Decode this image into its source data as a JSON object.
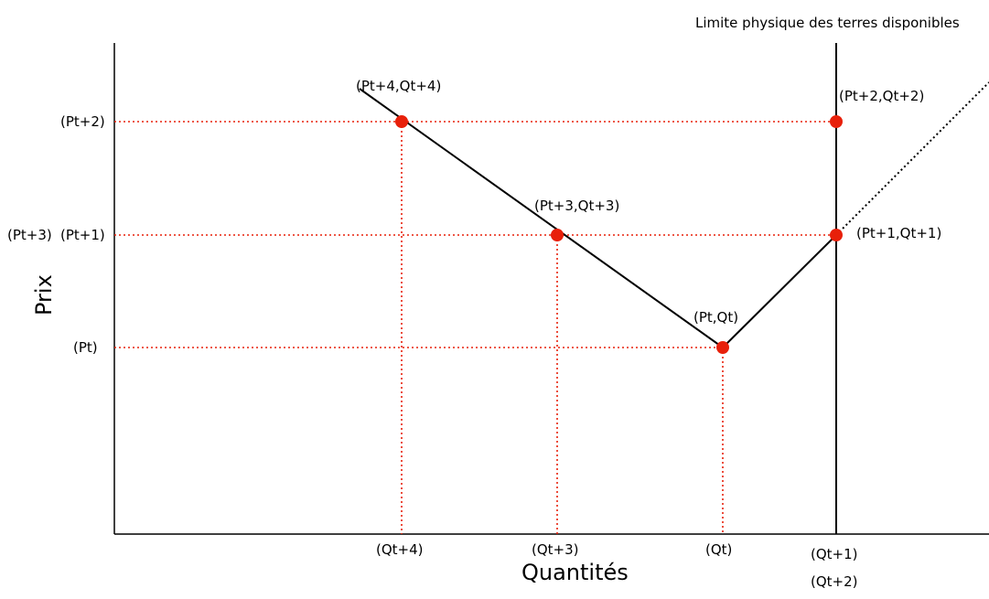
{
  "title": "Limite physique des terres disponibles",
  "axes": {
    "x_title": "Quantités",
    "y_title": "Prix"
  },
  "y_ticks": {
    "pt2": "(Pt+2)",
    "pt1": "(Pt+1)",
    "pt3": "(Pt+3)",
    "pt": "(Pt)"
  },
  "x_ticks": {
    "qt4": "(Qt+4)",
    "qt3": "(Qt+3)",
    "qt": "(Qt)",
    "qt1": "(Qt+1)",
    "qt2": "(Qt+2)"
  },
  "points": {
    "p0": "(Pt,Qt)",
    "p1": "(Pt+1,Qt+1)",
    "p2": "(Pt+2,Qt+2)",
    "p3": "(Pt+3,Qt+3)",
    "p4": "(Pt+4,Qt+4)"
  },
  "colors": {
    "point": "#e8200a",
    "guide": "#e8200a",
    "line": "#000000"
  }
}
